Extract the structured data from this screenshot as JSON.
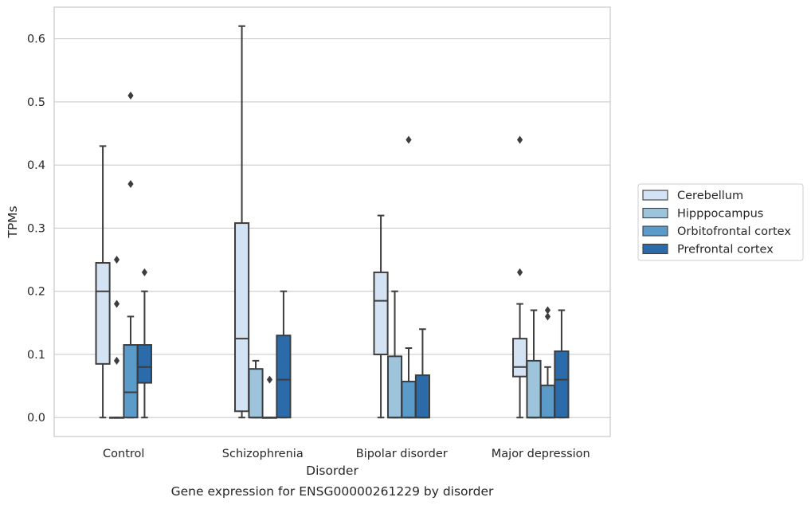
{
  "chart_data": {
    "type": "boxplot",
    "caption": "Gene expression for ENSG00000261229 by disorder",
    "xlabel": "Disorder",
    "ylabel": "TPMs",
    "ylim": [
      -0.03,
      0.65
    ],
    "yticks": [
      "0.0",
      "0.1",
      "0.2",
      "0.3",
      "0.4",
      "0.5",
      "0.6"
    ],
    "grid": true,
    "legend_position": "right",
    "categories": [
      "Control",
      "Schizophrenia",
      "Bipolar disorder",
      "Major depression"
    ],
    "series": [
      {
        "name": "Cerebellum",
        "color": "#d4e3f3",
        "boxes": [
          {
            "whislo": 0.0,
            "q1": 0.085,
            "med": 0.2,
            "q3": 0.245,
            "whishi": 0.43,
            "fliers": []
          },
          {
            "whislo": 0.0,
            "q1": 0.01,
            "med": 0.125,
            "q3": 0.308,
            "whishi": 0.62,
            "fliers": []
          },
          {
            "whislo": 0.0,
            "q1": 0.1,
            "med": 0.185,
            "q3": 0.23,
            "whishi": 0.32,
            "fliers": []
          },
          {
            "whislo": 0.0,
            "q1": 0.065,
            "med": 0.08,
            "q3": 0.125,
            "whishi": 0.18,
            "fliers": [
              0.23,
              0.44
            ]
          }
        ]
      },
      {
        "name": "Hipppocampus",
        "color": "#9ec4dc",
        "boxes": [
          {
            "whislo": 0.0,
            "q1": 0.0,
            "med": 0.0,
            "q3": 0.0,
            "whishi": 0.0,
            "fliers": [
              0.09,
              0.18,
              0.25
            ]
          },
          {
            "whislo": 0.0,
            "q1": 0.0,
            "med": 0.0,
            "q3": 0.077,
            "whishi": 0.09,
            "fliers": []
          },
          {
            "whislo": 0.0,
            "q1": 0.0,
            "med": 0.0,
            "q3": 0.097,
            "whishi": 0.2,
            "fliers": []
          },
          {
            "whislo": 0.0,
            "q1": 0.0,
            "med": 0.0,
            "q3": 0.09,
            "whishi": 0.17,
            "fliers": []
          }
        ]
      },
      {
        "name": "Orbitofrontal cortex",
        "color": "#5a9bc9",
        "boxes": [
          {
            "whislo": 0.0,
            "q1": 0.0,
            "med": 0.04,
            "q3": 0.115,
            "whishi": 0.16,
            "fliers": [
              0.37,
              0.51
            ]
          },
          {
            "whislo": 0.0,
            "q1": 0.0,
            "med": 0.0,
            "q3": 0.0,
            "whishi": 0.0,
            "fliers": [
              0.06
            ]
          },
          {
            "whislo": 0.0,
            "q1": 0.0,
            "med": 0.0,
            "q3": 0.057,
            "whishi": 0.11,
            "fliers": [
              0.44
            ]
          },
          {
            "whislo": 0.0,
            "q1": 0.0,
            "med": 0.0,
            "q3": 0.051,
            "whishi": 0.08,
            "fliers": [
              0.16,
              0.17
            ]
          }
        ]
      },
      {
        "name": "Prefrontal cortex",
        "color": "#2c6ba9",
        "boxes": [
          {
            "whislo": 0.0,
            "q1": 0.055,
            "med": 0.08,
            "q3": 0.115,
            "whishi": 0.2,
            "fliers": [
              0.23
            ]
          },
          {
            "whislo": 0.0,
            "q1": 0.0,
            "med": 0.06,
            "q3": 0.13,
            "whishi": 0.2,
            "fliers": []
          },
          {
            "whislo": 0.0,
            "q1": 0.0,
            "med": 0.0,
            "q3": 0.067,
            "whishi": 0.14,
            "fliers": []
          },
          {
            "whislo": 0.0,
            "q1": 0.0,
            "med": 0.06,
            "q3": 0.105,
            "whishi": 0.17,
            "fliers": []
          }
        ]
      }
    ]
  }
}
